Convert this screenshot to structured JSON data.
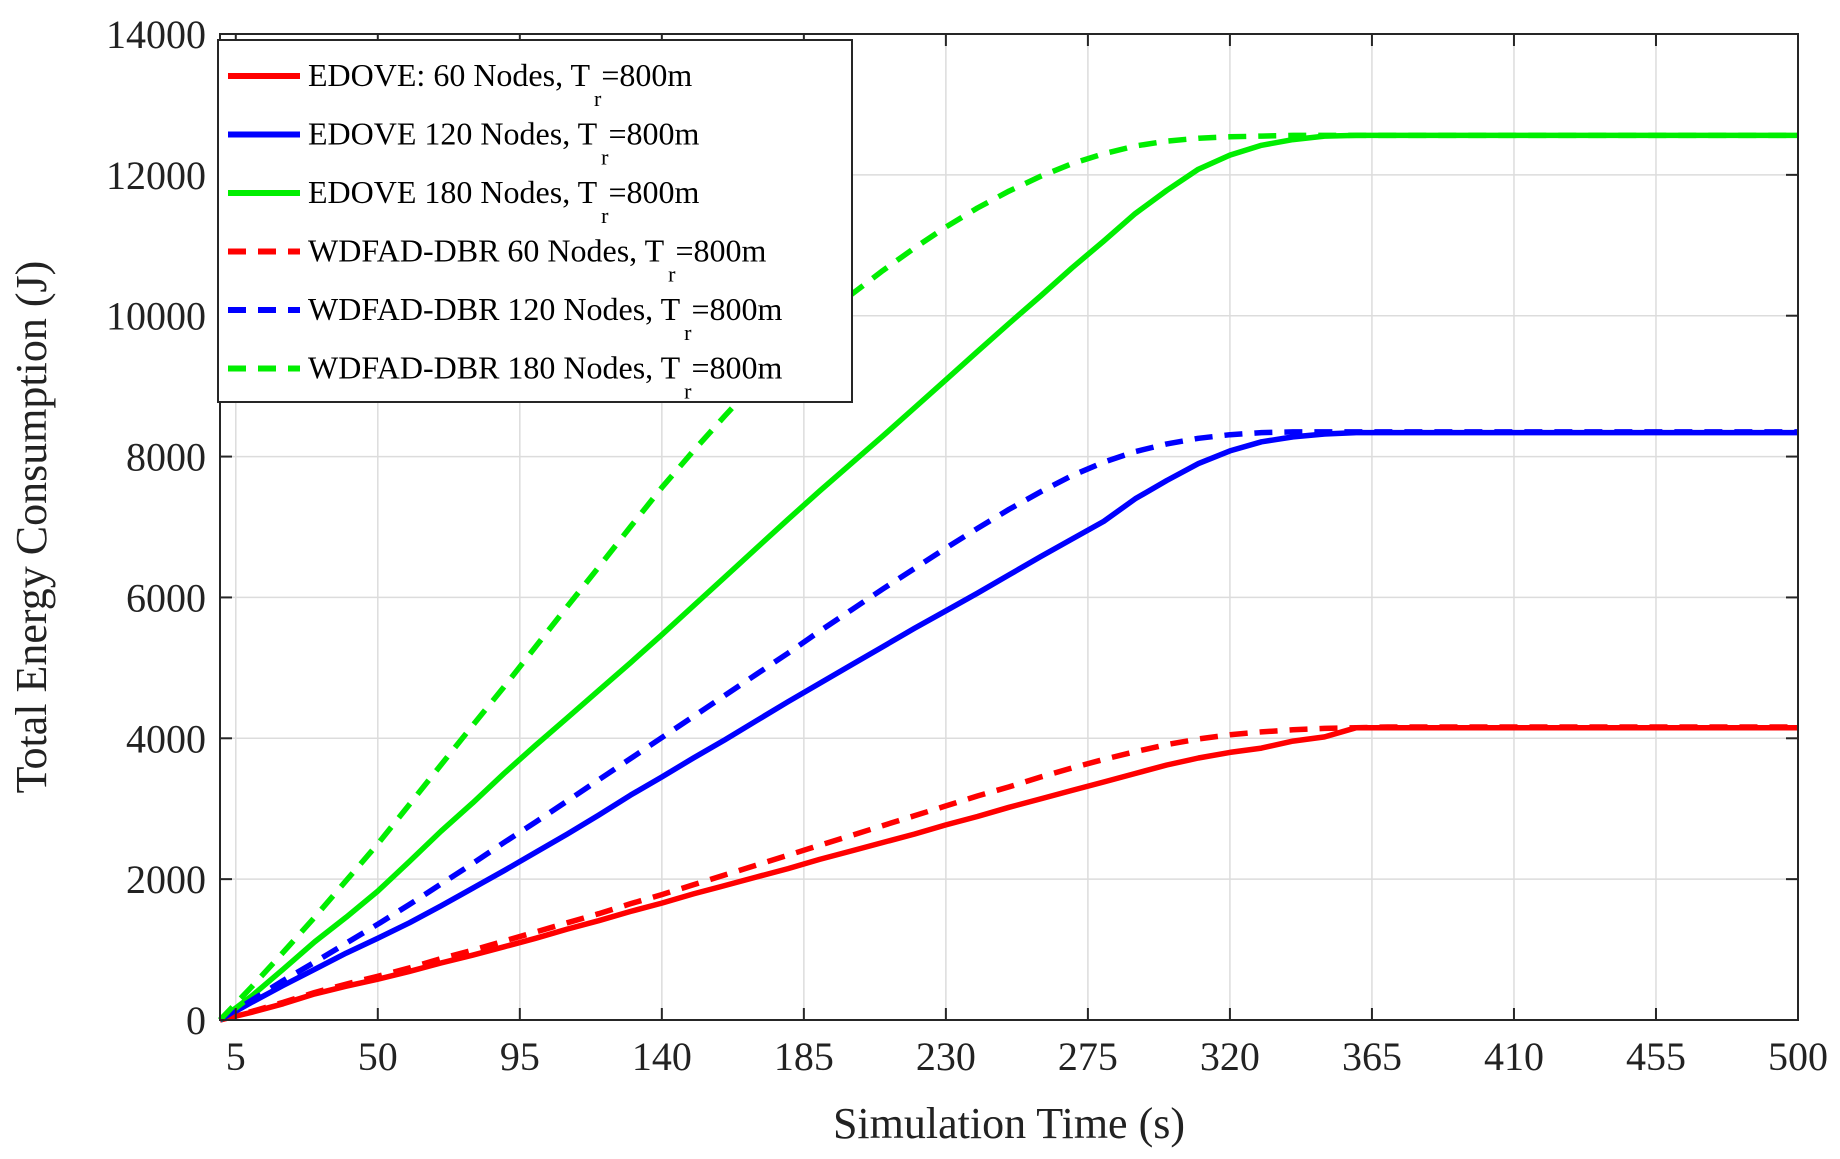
{
  "chart_data": {
    "type": "line",
    "title": "",
    "xlabel": "Simulation Time (s)",
    "ylabel": "Total Energy Consumption (J)",
    "xlim": [
      0,
      500
    ],
    "ylim": [
      0,
      14000
    ],
    "xticks": [
      5,
      50,
      95,
      140,
      185,
      230,
      275,
      320,
      365,
      410,
      455,
      500
    ],
    "yticks": [
      0,
      2000,
      4000,
      6000,
      8000,
      10000,
      12000,
      14000
    ],
    "grid": true,
    "legend_position": "top-left",
    "x": [
      0,
      10,
      20,
      30,
      40,
      50,
      60,
      70,
      80,
      90,
      100,
      110,
      120,
      130,
      140,
      150,
      160,
      170,
      180,
      190,
      200,
      210,
      220,
      230,
      240,
      250,
      260,
      270,
      280,
      290,
      300,
      310,
      320,
      330,
      340,
      350,
      360,
      370,
      380,
      390,
      400,
      420,
      440,
      460,
      480,
      500
    ],
    "series": [
      {
        "name": "EDOVE: 60 Nodes, T",
        "subscript": "r",
        "suffix": "=800m",
        "color": "#ff0000",
        "style": "solid",
        "values": [
          0,
          110,
          230,
          370,
          480,
          580,
          690,
          810,
          920,
          1040,
          1160,
          1290,
          1410,
          1540,
          1660,
          1790,
          1910,
          2030,
          2150,
          2280,
          2400,
          2520,
          2640,
          2770,
          2890,
          3020,
          3140,
          3260,
          3380,
          3500,
          3620,
          3720,
          3800,
          3860,
          3960,
          4020,
          4150,
          4150,
          4150,
          4150,
          4150,
          4150,
          4150,
          4150,
          4150,
          4150
        ]
      },
      {
        "name": "EDOVE 120 Nodes, T",
        "subscript": "r",
        "suffix": "=800m",
        "color": "#0000ff",
        "style": "solid",
        "values": [
          0,
          250,
          490,
          720,
          950,
          1160,
          1380,
          1620,
          1870,
          2120,
          2380,
          2640,
          2910,
          3190,
          3450,
          3720,
          3980,
          4250,
          4520,
          4780,
          5040,
          5300,
          5560,
          5810,
          6060,
          6320,
          6580,
          6830,
          7080,
          7400,
          7660,
          7900,
          8080,
          8210,
          8280,
          8320,
          8340,
          8340,
          8340,
          8340,
          8340,
          8340,
          8340,
          8340,
          8340,
          8340
        ]
      },
      {
        "name": "EDOVE 180 Nodes, T",
        "subscript": "r",
        "suffix": "=800m",
        "color": "#00ee00",
        "style": "solid",
        "values": [
          0,
          340,
          720,
          1110,
          1460,
          1830,
          2250,
          2680,
          3080,
          3500,
          3900,
          4290,
          4680,
          5070,
          5470,
          5880,
          6290,
          6700,
          7110,
          7510,
          7900,
          8290,
          8690,
          9090,
          9490,
          9890,
          10280,
          10680,
          11060,
          11450,
          11780,
          12080,
          12280,
          12420,
          12500,
          12550,
          12560,
          12560,
          12560,
          12560,
          12560,
          12560,
          12560,
          12560,
          12560,
          12560
        ]
      },
      {
        "name": "WDFAD-DBR 60 Nodes, T",
        "subscript": "r",
        "suffix": "=800m",
        "color": "#ff0000",
        "style": "dashed",
        "values": [
          0,
          120,
          250,
          390,
          510,
          620,
          740,
          870,
          990,
          1120,
          1250,
          1380,
          1510,
          1650,
          1780,
          1920,
          2060,
          2200,
          2340,
          2480,
          2620,
          2760,
          2900,
          3040,
          3180,
          3310,
          3450,
          3580,
          3700,
          3810,
          3910,
          3990,
          4050,
          4090,
          4120,
          4140,
          4150,
          4160,
          4160,
          4160,
          4160,
          4160,
          4160,
          4160,
          4160,
          4160
        ]
      },
      {
        "name": "WDFAD-DBR 120 Nodes, T",
        "subscript": "r",
        "suffix": "=800m",
        "color": "#0000ff",
        "style": "dashed",
        "values": [
          0,
          280,
          560,
          820,
          1090,
          1360,
          1640,
          1930,
          2220,
          2520,
          2810,
          3110,
          3410,
          3710,
          4010,
          4310,
          4610,
          4910,
          5210,
          5520,
          5820,
          6120,
          6410,
          6700,
          6980,
          7250,
          7500,
          7730,
          7920,
          8070,
          8180,
          8260,
          8310,
          8340,
          8350,
          8350,
          8350,
          8350,
          8350,
          8350,
          8350,
          8350,
          8350,
          8350,
          8350,
          8350
        ]
      },
      {
        "name": "WDFAD-DBR 180 Nodes, T",
        "subscript": "r",
        "suffix": "=800m",
        "color": "#00ee00",
        "style": "dashed",
        "values": [
          0,
          470,
          960,
          1460,
          1980,
          2500,
          3060,
          3620,
          4180,
          4730,
          5300,
          5870,
          6430,
          7000,
          7560,
          8080,
          8580,
          9060,
          9510,
          9930,
          10300,
          10640,
          10960,
          11260,
          11530,
          11770,
          11980,
          12160,
          12300,
          12410,
          12480,
          12520,
          12540,
          12550,
          12560,
          12560,
          12560,
          12560,
          12560,
          12560,
          12560,
          12560,
          12560,
          12560,
          12560,
          12560
        ]
      }
    ]
  }
}
